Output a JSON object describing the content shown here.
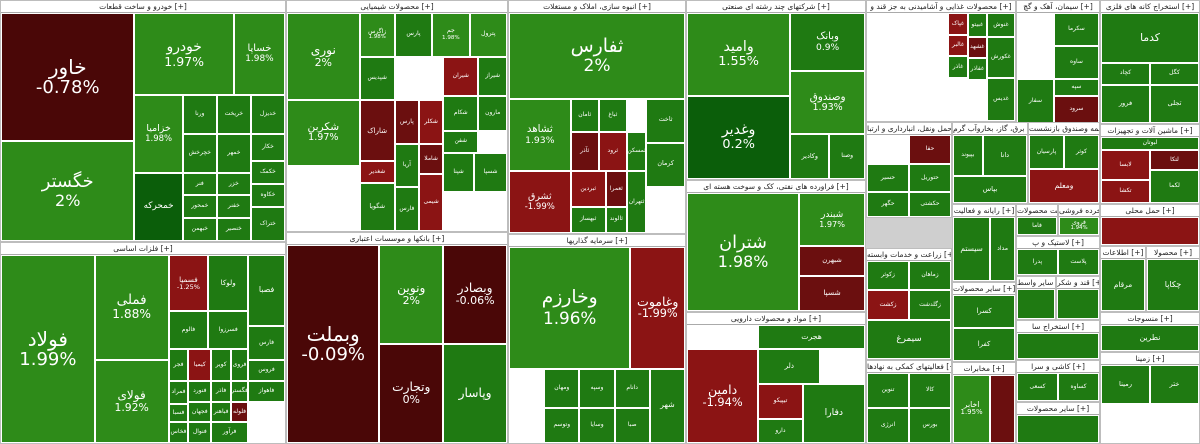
{
  "colors": {
    "g1": "#2e8b19",
    "g2": "#1f7a12",
    "g3": "#0b5e0a",
    "g4": "#0a4a08",
    "r1": "#8b1414",
    "r2": "#6b0f0f",
    "r3": "#4a0707"
  },
  "sectors": [
    {
      "title": "خودرو و ساخت قطعات [+]",
      "tiles": [
        {
          "nm": "خاور",
          "pc": "-0.78%",
          "c": "r3"
        },
        {
          "nm": "خودرو",
          "pc": "1.97%",
          "c": "g1"
        },
        {
          "nm": "خساپا",
          "pc": "1.98%",
          "c": "g1"
        },
        {
          "nm": "خگستر",
          "pc": "2%",
          "c": "g1"
        },
        {
          "nm": "خزامیا",
          "pc": "1.98%",
          "c": "g1"
        },
        {
          "nm": "ورنا",
          "pc": "",
          "c": "g2"
        },
        {
          "nm": "خریخت",
          "pc": "",
          "c": "g2"
        },
        {
          "nm": "خدیزل",
          "pc": "",
          "c": "g2"
        },
        {
          "nm": "خچرخش",
          "pc": "",
          "c": "g2"
        },
        {
          "nm": "خمهر",
          "pc": "",
          "c": "g2"
        },
        {
          "nm": "خکار",
          "pc": "",
          "c": "g2"
        },
        {
          "nm": "فنر",
          "pc": "",
          "c": "g2"
        },
        {
          "nm": "خزر",
          "pc": "",
          "c": "g2"
        },
        {
          "nm": "خکمک",
          "pc": "",
          "c": "g2"
        },
        {
          "nm": "خمحرکه",
          "pc": "",
          "c": "g3"
        },
        {
          "nm": "خمحور",
          "pc": "",
          "c": "g2"
        },
        {
          "nm": "خفنر",
          "pc": "",
          "c": "g2"
        },
        {
          "nm": "خکاوه",
          "pc": "",
          "c": "g2"
        },
        {
          "nm": "خبهمن",
          "pc": "",
          "c": "g2"
        },
        {
          "nm": "خنصیر",
          "pc": "",
          "c": "g2"
        },
        {
          "nm": "ختراک",
          "pc": "",
          "c": "g2"
        },
        {
          "nm": "خعمرا",
          "pc": "",
          "c": "g2"
        },
        {
          "nm": "خاهن",
          "pc": "",
          "c": "g2"
        },
        {
          "nm": "خلنت",
          "pc": "",
          "c": "g2"
        },
        {
          "nm": "خودکفا",
          "pc": "",
          "c": "g2"
        },
        {
          "nm": "خپویش",
          "pc": "",
          "c": "g2"
        },
        {
          "nm": "خفناور",
          "pc": "",
          "c": "g2"
        },
        {
          "nm": "خرینگ",
          "pc": "",
          "c": "g2"
        },
        {
          "nm": "خشرق",
          "pc": "",
          "c": "g2"
        }
      ]
    },
    {
      "title": "فلزات اساسی [+]",
      "tiles": [
        {
          "nm": "فولاد",
          "pc": "1.99%",
          "c": "g1"
        },
        {
          "nm": "فملی",
          "pc": "1.88%",
          "c": "g1"
        },
        {
          "nm": "فخوز",
          "pc": "",
          "c": "r3"
        },
        {
          "nm": "فارس",
          "pc": "",
          "c": "g2"
        },
        {
          "nm": "فسمیا",
          "pc": "-1.25%",
          "c": "r1"
        },
        {
          "nm": "ولوکا",
          "pc": "",
          "c": "g2"
        },
        {
          "nm": "فالوم",
          "pc": "",
          "c": "g2"
        },
        {
          "nm": "فسرزوا",
          "pc": "",
          "c": "g2"
        },
        {
          "nm": "فصبا",
          "pc": "",
          "c": "g2"
        },
        {
          "nm": "فجر",
          "pc": "",
          "c": "g2"
        },
        {
          "nm": "کیمیا",
          "pc": "",
          "c": "r1"
        },
        {
          "nm": "کویر",
          "pc": "",
          "c": "g2"
        },
        {
          "nm": "فروی",
          "pc": "",
          "c": "g2"
        },
        {
          "nm": "فمراد",
          "pc": "",
          "c": "g2"
        },
        {
          "nm": "فسبا",
          "pc": "",
          "c": "g2"
        },
        {
          "nm": "فخاس",
          "pc": "",
          "c": "g2"
        },
        {
          "nm": "فنورد",
          "pc": "",
          "c": "g2"
        },
        {
          "nm": "فولای",
          "pc": "1.92%",
          "c": "g1"
        },
        {
          "nm": "فاذر",
          "pc": "",
          "c": "g2"
        },
        {
          "nm": "فگستر",
          "pc": "",
          "c": "g2"
        },
        {
          "nm": "فروس",
          "pc": "",
          "c": "g2"
        },
        {
          "nm": "فلوله",
          "pc": "",
          "c": "r2"
        },
        {
          "nm": "فجهان",
          "pc": "",
          "c": "g2"
        },
        {
          "nm": "فباهنر",
          "pc": "",
          "c": "g2"
        },
        {
          "nm": "فاهواز",
          "pc": "",
          "c": "g2"
        },
        {
          "nm": "فنوال",
          "pc": "",
          "c": "g2"
        },
        {
          "nm": "فرآور",
          "pc": "",
          "c": "g2"
        }
      ]
    },
    {
      "title": "محصولات شیمیایی [+]",
      "tiles": [
        {
          "nm": "نوری",
          "pc": "2%",
          "c": "g1"
        },
        {
          "nm": "زاگرس",
          "pc": "1.98%",
          "c": "g1"
        },
        {
          "nm": "پارس",
          "pc": "",
          "c": "g2"
        },
        {
          "nm": "جم",
          "pc": "1.98%",
          "c": "g1"
        },
        {
          "nm": "پترول",
          "pc": "",
          "c": "g1"
        },
        {
          "nm": "شپدیس",
          "pc": "",
          "c": "g2"
        },
        {
          "nm": "شیران",
          "pc": "",
          "c": "r1"
        },
        {
          "nm": "شیراز",
          "pc": "",
          "c": "g2"
        },
        {
          "nm": "مارون",
          "pc": "",
          "c": "g2"
        },
        {
          "nm": "شکام",
          "pc": "",
          "c": "g2"
        },
        {
          "nm": "شاراک",
          "pc": "",
          "c": "r2"
        },
        {
          "nm": "پارس",
          "pc": "",
          "c": "r2"
        },
        {
          "nm": "شکلر",
          "pc": "",
          "c": "r1"
        },
        {
          "nm": "شاملا",
          "pc": "",
          "c": "r2"
        },
        {
          "nm": "شغدیر",
          "pc": "",
          "c": "r1"
        },
        {
          "nm": "آریا",
          "pc": "",
          "c": "g2"
        },
        {
          "nm": "شفن",
          "pc": "",
          "c": "g2"
        },
        {
          "nm": "شکربن",
          "pc": "1.97%",
          "c": "g1"
        },
        {
          "nm": "شگویا",
          "pc": "",
          "c": "g2"
        },
        {
          "nm": "فارس",
          "pc": "",
          "c": "g2"
        },
        {
          "nm": "شیمی",
          "pc": "",
          "c": "r1"
        },
        {
          "nm": "شپنا",
          "pc": "",
          "c": "g2"
        },
        {
          "nm": "شسپا",
          "pc": "",
          "c": "g2"
        }
      ]
    },
    {
      "title": "بانکها و موسسات اعتباری [+]",
      "tiles": [
        {
          "nm": "وبملت",
          "pc": "-0.09%",
          "c": "r3"
        },
        {
          "nm": "وبصادر",
          "pc": "-0.06%",
          "c": "r3"
        },
        {
          "nm": "ونوین",
          "pc": "2%",
          "c": "g1"
        },
        {
          "nm": "وتجارت",
          "pc": "0%",
          "c": "r3"
        },
        {
          "nm": "وپاسار",
          "pc": "",
          "c": "g2"
        }
      ]
    },
    {
      "title": "انبوه سازی، املاک و مستغلات [+]",
      "tiles": [
        {
          "nm": "ثفارس",
          "pc": "2%",
          "c": "g1"
        },
        {
          "nm": "ثشاهد",
          "pc": "1.93%",
          "c": "g1"
        },
        {
          "nm": "ثامان",
          "pc": "",
          "c": "g2"
        },
        {
          "nm": "ثباغ",
          "pc": "",
          "c": "g2"
        },
        {
          "nm": "ثاخت",
          "pc": "",
          "c": "g2"
        },
        {
          "nm": "ثرود",
          "pc": "",
          "c": "r1"
        },
        {
          "nm": "ثآذر",
          "pc": "",
          "c": "r2"
        },
        {
          "nm": "ثمسکن",
          "pc": "",
          "c": "g2"
        },
        {
          "nm": "کرمان",
          "pc": "",
          "c": "g2"
        },
        {
          "nm": "ثشرق",
          "pc": "-1.99%",
          "c": "r1"
        },
        {
          "nm": "ثبردین",
          "pc": "",
          "c": "r1"
        },
        {
          "nm": "ثعمرا",
          "pc": "",
          "c": "r2"
        },
        {
          "nm": "ثالوند",
          "pc": "",
          "c": "g2"
        },
        {
          "nm": "ثتهران",
          "pc": "",
          "c": "g2"
        },
        {
          "nm": "ثبهساز",
          "pc": "",
          "c": "g2"
        }
      ]
    },
    {
      "title": "سرمایه گذاریها [+]",
      "tiles": [
        {
          "nm": "وخارزم",
          "pc": "1.96%",
          "c": "g1"
        },
        {
          "nm": "وغاموت",
          "pc": "-1.99%",
          "c": "r1"
        },
        {
          "nm": "ومهان",
          "pc": "",
          "c": "g2"
        },
        {
          "nm": "وتوسم",
          "pc": "",
          "c": "g2"
        },
        {
          "nm": "وسپه",
          "pc": "",
          "c": "g2"
        },
        {
          "nm": "وسایا",
          "pc": "",
          "c": "g2"
        },
        {
          "nm": "صبا",
          "pc": "",
          "c": "g2"
        },
        {
          "nm": "دانام",
          "pc": "",
          "c": "g2"
        },
        {
          "nm": "شهر",
          "pc": "",
          "c": "g2"
        }
      ]
    },
    {
      "title": "شرکتهای چند رشته ای صنعتی [+]",
      "tiles": [
        {
          "nm": "وامید",
          "pc": "1.55%",
          "c": "g1"
        },
        {
          "nm": "وبانک",
          "pc": "0.9%",
          "c": "g2"
        },
        {
          "nm": "وصندوق",
          "pc": "1.93%",
          "c": "g1"
        },
        {
          "nm": "وغدیر",
          "pc": "0.2%",
          "c": "g3"
        },
        {
          "nm": "وکادیر",
          "pc": "",
          "c": "g2"
        },
        {
          "nm": "وصنا",
          "pc": "",
          "c": "g2"
        }
      ]
    },
    {
      "title": "فراورده های نفتی، کک و سوخت هسته ای [+]",
      "tiles": [
        {
          "nm": "شتران",
          "pc": "1.98%",
          "c": "g1"
        },
        {
          "nm": "شبندر",
          "pc": "1.97%",
          "c": "g1"
        },
        {
          "nm": "شبهرن",
          "pc": "",
          "c": "r2"
        },
        {
          "nm": "شسپا",
          "pc": "",
          "c": "r2"
        }
      ]
    },
    {
      "title": "مواد و محصولات دارویی [+]",
      "tiles": [
        {
          "nm": "دامین",
          "pc": "-1.94%",
          "c": "r1"
        },
        {
          "nm": "هجرت",
          "pc": "",
          "c": "g2"
        },
        {
          "nm": "دلر",
          "pc": "",
          "c": "g2"
        },
        {
          "nm": "تیپیکو",
          "pc": "",
          "c": "r1"
        },
        {
          "nm": "دارو",
          "pc": "",
          "c": "g2"
        },
        {
          "nm": "دفارا",
          "pc": "",
          "c": "g2"
        }
      ]
    },
    {
      "title": "محصولات غذایی و آشامیدنی به جز قند و [+]",
      "tiles": [
        {
          "nm": "غنوش",
          "pc": "",
          "c": "g2"
        },
        {
          "nm": "غبیتو",
          "pc": "",
          "c": "g2"
        },
        {
          "nm": "غپاک",
          "pc": "",
          "c": "r1"
        },
        {
          "nm": "غالبر",
          "pc": "",
          "c": "r1"
        },
        {
          "nm": "غشهد",
          "pc": "",
          "c": "r2"
        },
        {
          "nm": "غکورش",
          "pc": "",
          "c": "g2"
        },
        {
          "nm": "غاذر",
          "pc": "",
          "c": "g2"
        },
        {
          "nm": "غفاذر",
          "pc": "",
          "c": "g2"
        },
        {
          "nm": "غدیس",
          "pc": "",
          "c": "g2"
        }
      ]
    },
    {
      "title": "سیمان، آهک و گچ [+]",
      "tiles": [
        {
          "nm": "سکرما",
          "pc": "",
          "c": "g2"
        },
        {
          "nm": "ساوه",
          "pc": "",
          "c": "g2"
        },
        {
          "nm": "سرود",
          "pc": "",
          "c": "r2"
        },
        {
          "nm": "سفار",
          "pc": "",
          "c": "g2"
        },
        {
          "nm": "سپه",
          "pc": "",
          "c": "g2"
        }
      ]
    },
    {
      "title": "استخراج کانه های فلزی [+]",
      "tiles": [
        {
          "nm": "کچاد",
          "pc": "",
          "c": "g2"
        },
        {
          "nm": "کگل",
          "pc": "",
          "c": "g2"
        },
        {
          "nm": "فرور",
          "pc": "",
          "c": "g2"
        },
        {
          "nm": "تجلی",
          "pc": "",
          "c": "g2"
        },
        {
          "nm": "کدما",
          "pc": "",
          "c": "g2"
        }
      ]
    },
    {
      "title": "عرضه برق، گاز، بخاروآب گرم [+]",
      "tiles": [
        {
          "nm": "بپیوند",
          "pc": "",
          "c": "g2"
        },
        {
          "nm": "دانا",
          "pc": "",
          "c": "g2"
        },
        {
          "nm": "بپاس",
          "pc": "",
          "c": "g2"
        }
      ]
    },
    {
      "title": "بیمه وصندوق بازنشست [+]",
      "tiles": [
        {
          "nm": "پارسیان",
          "pc": "",
          "c": "g2"
        },
        {
          "nm": "کوثر",
          "pc": "",
          "c": "g2"
        },
        {
          "nm": "ومعلم",
          "pc": "",
          "c": "r1"
        }
      ]
    },
    {
      "title": "ماشین آلات و تجهیزات [+]",
      "tiles": [
        {
          "nm": "لابسا",
          "pc": "",
          "c": "r1"
        },
        {
          "nm": "لتکا",
          "pc": "",
          "c": "r2"
        },
        {
          "nm": "تکشا",
          "pc": "",
          "c": "r1"
        },
        {
          "nm": "لکما",
          "pc": "",
          "c": "g2"
        },
        {
          "nm": "لبوتان",
          "pc": "",
          "c": "g2"
        }
      ]
    },
    {
      "title": "حمل ونقل، انبارداری و ارتبا [+]",
      "tiles": [
        {
          "nm": "حفا",
          "pc": "",
          "c": "r2"
        },
        {
          "nm": "حسیر",
          "pc": "",
          "c": "g2"
        },
        {
          "nm": "حتوریل",
          "pc": "",
          "c": "g2"
        },
        {
          "nm": "حگهر",
          "pc": "",
          "c": "g2"
        },
        {
          "nm": "حکشتی",
          "pc": "",
          "c": "g2"
        }
      ]
    },
    {
      "title": "رایانه و فعالیت [+]",
      "tiles": [
        {
          "nm": "سیستم",
          "pc": "",
          "c": "g2"
        },
        {
          "nm": "مداد",
          "pc": "",
          "c": "g2"
        }
      ]
    },
    {
      "title": "ساخت محصولات [+]",
      "tiles": [
        {
          "nm": "فاما",
          "pc": "",
          "c": "g2"
        }
      ]
    },
    {
      "title": "خرده فروشی [+]",
      "tiles": [
        {
          "nm": "فروی",
          "pc": "1.94%",
          "c": "g1"
        }
      ]
    },
    {
      "title": "حمل محلی [+]",
      "tiles": [
        {
          "nm": "",
          "pc": "",
          "c": "r1"
        }
      ]
    },
    {
      "title": "زراعت و خدمات وابسته [+]",
      "tiles": [
        {
          "nm": "زکوثر",
          "pc": "",
          "c": "g2"
        },
        {
          "nm": "زکشت",
          "pc": "",
          "c": "r1"
        },
        {
          "nm": "زماهان",
          "pc": "",
          "c": "g2"
        },
        {
          "nm": "زگلدشت",
          "pc": "",
          "c": "g2"
        },
        {
          "nm": "سیمرغ",
          "pc": "",
          "c": "g2"
        }
      ]
    },
    {
      "title": "سایر محصولات [+]",
      "tiles": [
        {
          "nm": "کسرا",
          "pc": "",
          "c": "g2"
        },
        {
          "nm": "کفرا",
          "pc": "",
          "c": "g2"
        }
      ]
    },
    {
      "title": "فعالیتهای کمکی به نهادها [+]",
      "tiles": [
        {
          "nm": "تنوین",
          "pc": "",
          "c": "g2"
        },
        {
          "nm": "کالا",
          "pc": "",
          "c": "g2"
        },
        {
          "nm": "انرژی",
          "pc": "",
          "c": "g2"
        },
        {
          "nm": "بورس",
          "pc": "",
          "c": "g2"
        }
      ]
    },
    {
      "title": "مخابرات [+]",
      "tiles": [
        {
          "nm": "اخابر",
          "pc": "1.95%",
          "c": "g1"
        },
        {
          "nm": "",
          "pc": "",
          "c": "r2"
        }
      ]
    },
    {
      "title": "لاستیک و پ [+]",
      "tiles": [
        {
          "nm": "پدرا",
          "pc": "",
          "c": "g2"
        },
        {
          "nm": "پلاست",
          "pc": "",
          "c": "g2"
        }
      ]
    },
    {
      "title": "سایر واسط [+]",
      "tiles": [
        {
          "nm": "",
          "pc": "",
          "c": "g2"
        }
      ]
    },
    {
      "title": "استخراج سا [+]",
      "tiles": [
        {
          "nm": "",
          "pc": "",
          "c": "g2"
        }
      ]
    },
    {
      "title": "قند و شکر [+]",
      "tiles": [
        {
          "nm": "",
          "pc": "",
          "c": "g2"
        }
      ]
    },
    {
      "title": "اطلاعات [+]",
      "tiles": [
        {
          "nm": "مرقام",
          "pc": "",
          "c": "g2"
        }
      ]
    },
    {
      "title": "محصولا [+]",
      "tiles": [
        {
          "nm": "چکاپا",
          "pc": "",
          "c": "g2"
        }
      ]
    },
    {
      "title": "منسوجات [+]",
      "tiles": [
        {
          "nm": "نطرین",
          "pc": "",
          "c": "g2"
        }
      ]
    },
    {
      "title": "کاشی و سرا [+]",
      "tiles": [
        {
          "nm": "کسعی",
          "pc": "",
          "c": "g2"
        },
        {
          "nm": "کساوه",
          "pc": "",
          "c": "g2"
        }
      ]
    },
    {
      "title": "سایر محصولات [+]",
      "tiles": [
        {
          "nm": "",
          "pc": "",
          "c": "g2"
        }
      ]
    },
    {
      "title": "زمینا [+]",
      "tiles": [
        {
          "nm": "رمینا",
          "pc": "",
          "c": "g2"
        },
        {
          "nm": "ختر",
          "pc": "",
          "c": "g2"
        }
      ]
    },
    {
      "title": "استخر [+]",
      "tiles": [
        {
          "nm": "",
          "pc": "",
          "c": "r1"
        }
      ]
    }
  ]
}
